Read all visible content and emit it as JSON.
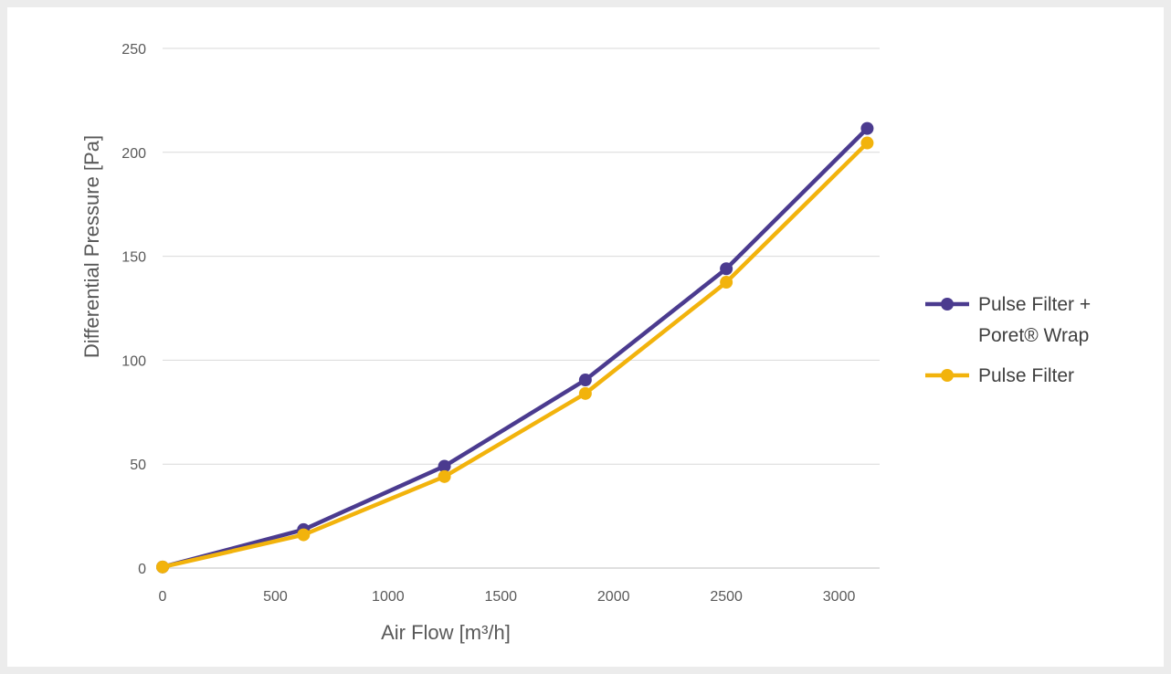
{
  "chart_data": {
    "type": "line",
    "xlabel": "Air Flow [m³/h]",
    "ylabel": "Differential Pressure [Pa]",
    "xlim": [
      0,
      3180
    ],
    "ylim": [
      0,
      250
    ],
    "xticks": [
      0,
      500,
      1000,
      1500,
      2000,
      2500,
      3000
    ],
    "yticks": [
      0,
      50,
      100,
      150,
      200,
      250
    ],
    "grid": "horizontal",
    "legend_position": "right",
    "series": [
      {
        "name": [
          "Pulse Filter +",
          "Poret® Wrap"
        ],
        "color": "#4b3b8f",
        "x": [
          0,
          625,
          1250,
          1875,
          2500,
          3125
        ],
        "y": [
          0.5,
          18.5,
          49,
          90.5,
          144,
          211.5
        ]
      },
      {
        "name": [
          "Pulse Filter"
        ],
        "color": "#f2b30c",
        "x": [
          0,
          625,
          1250,
          1875,
          2500,
          3125
        ],
        "y": [
          0.5,
          16,
          44,
          84,
          137.5,
          204.5
        ]
      }
    ]
  }
}
